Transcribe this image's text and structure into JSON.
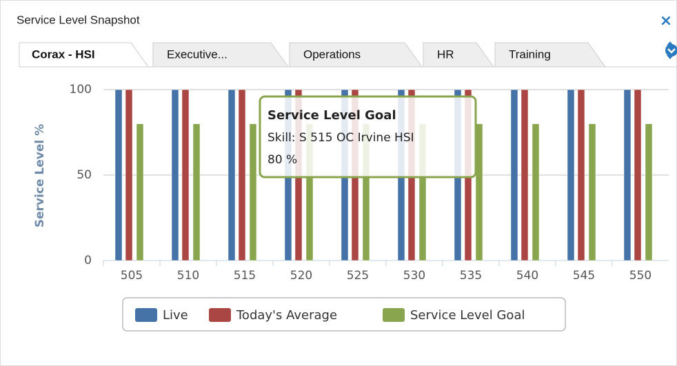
{
  "panel": {
    "title": "Service Level Snapshot",
    "tabs": [
      "Corax - HSI",
      "Executive...",
      "Operations",
      "HR",
      "Training"
    ]
  },
  "chart_data": {
    "type": "bar",
    "y_label": "Service Level %",
    "categories": [
      "505",
      "510",
      "515",
      "520",
      "525",
      "530",
      "535",
      "540",
      "545",
      "550"
    ],
    "series": [
      {
        "name": "Live",
        "color": "#4572a7",
        "values": [
          100,
          100,
          100,
          100,
          100,
          100,
          100,
          100,
          100,
          100
        ]
      },
      {
        "name": "Today's Average",
        "color": "#aa4643",
        "values": [
          100,
          100,
          100,
          100,
          100,
          100,
          100,
          100,
          100,
          100
        ]
      },
      {
        "name": "Service Level Goal",
        "color": "#89a54e",
        "values": [
          80,
          80,
          80,
          80,
          80,
          80,
          80,
          80,
          80,
          80
        ]
      }
    ],
    "ylim": [
      0,
      100
    ],
    "yticks": [
      0,
      50,
      100
    ],
    "grid": true
  },
  "tooltip": {
    "title": "Service Level Goal",
    "line1": "Skill: S 515 OC Irvine HSI",
    "line2": "80 %"
  }
}
